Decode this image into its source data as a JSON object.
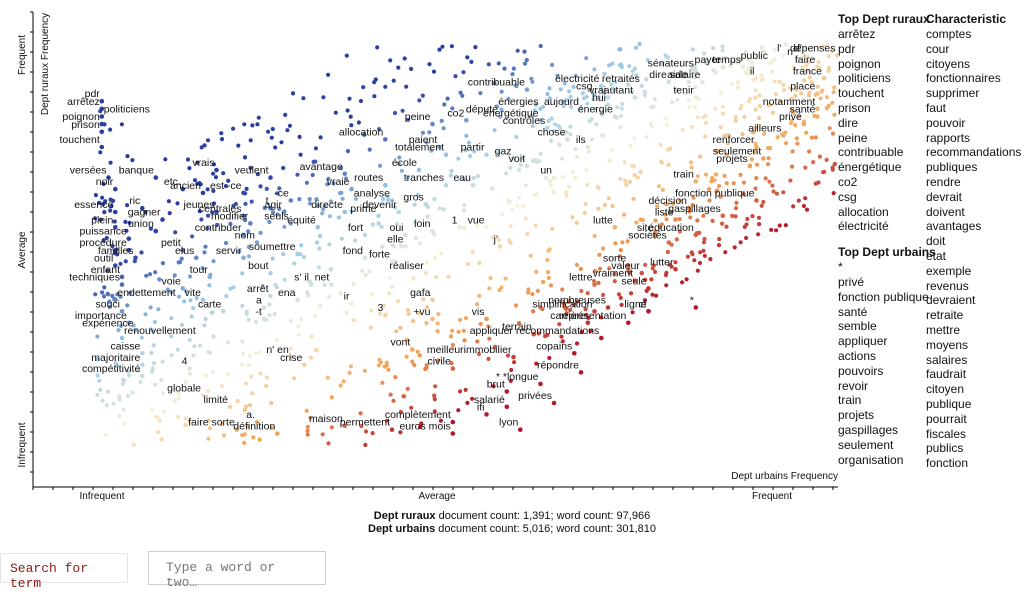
{
  "chart_data": {
    "type": "scatter",
    "x_axis": {
      "label": "Dept urbains Frequency",
      "ticks": [
        "Infrequent",
        "Average",
        "Frequent"
      ]
    },
    "y_axis": {
      "label": "Dept ruraux Frequency",
      "ticks": [
        "Infrequent",
        "Average",
        "Frequent"
      ]
    },
    "color_scale": {
      "rural": "#2b3fa0",
      "mid_rural": "#9cc9e6",
      "neutral": "#f4f1d8",
      "mid_urban": "#f2a65a",
      "urban": "#b2182b"
    },
    "points": [
      {
        "label": "pdr",
        "x": 0.01,
        "y": 0.9
      },
      {
        "label": "arrêtez",
        "x": 0.01,
        "y": 0.88
      },
      {
        "label": "politiciens",
        "x": 0.01,
        "y": 0.86
      },
      {
        "label": "poignon",
        "x": 0.01,
        "y": 0.84
      },
      {
        "label": "prison",
        "x": 0.01,
        "y": 0.82
      },
      {
        "label": "touchent",
        "x": 0.01,
        "y": 0.78
      },
      {
        "label": "versées",
        "x": 0.02,
        "y": 0.7
      },
      {
        "label": "banque",
        "x": 0.09,
        "y": 0.7
      },
      {
        "label": "etc.",
        "x": 0.13,
        "y": 0.67
      },
      {
        "label": "noir",
        "x": 0.03,
        "y": 0.67
      },
      {
        "label": "ancien",
        "x": 0.16,
        "y": 0.66
      },
      {
        "label": "est -ce",
        "x": 0.22,
        "y": 0.66
      },
      {
        "label": "vrais",
        "x": 0.18,
        "y": 0.72
      },
      {
        "label": "veulent",
        "x": 0.26,
        "y": 0.7
      },
      {
        "label": "essence",
        "x": 0.03,
        "y": 0.61
      },
      {
        "label": "ric",
        "x": 0.07,
        "y": 0.62
      },
      {
        "label": "jeunes",
        "x": 0.18,
        "y": 0.61
      },
      {
        "label": "gagner",
        "x": 0.1,
        "y": 0.59
      },
      {
        "label": "centrales",
        "x": 0.22,
        "y": 0.6
      },
      {
        "label": "plein",
        "x": 0.03,
        "y": 0.57
      },
      {
        "label": "union",
        "x": 0.09,
        "y": 0.56
      },
      {
        "label": "modifier",
        "x": 0.23,
        "y": 0.58
      },
      {
        "label": "-ce",
        "x": 0.29,
        "y": 0.64
      },
      {
        "label": "agir",
        "x": 0.28,
        "y": 0.61
      },
      {
        "label": "t",
        "x": 0.26,
        "y": 0.62
      },
      {
        "label": "seuls",
        "x": 0.29,
        "y": 0.58
      },
      {
        "label": "puissance",
        "x": 0.05,
        "y": 0.54
      },
      {
        "label": "contribuer",
        "x": 0.22,
        "y": 0.55
      },
      {
        "label": "nom",
        "x": 0.24,
        "y": 0.53
      },
      {
        "label": "équité",
        "x": 0.33,
        "y": 0.57
      },
      {
        "label": "procédure",
        "x": 0.05,
        "y": 0.51
      },
      {
        "label": "familles",
        "x": 0.06,
        "y": 0.49
      },
      {
        "label": "petit",
        "x": 0.13,
        "y": 0.51
      },
      {
        "label": "elus",
        "x": 0.15,
        "y": 0.49
      },
      {
        "label": "servir",
        "x": 0.22,
        "y": 0.49
      },
      {
        "label": "soumettre",
        "x": 0.3,
        "y": 0.5
      },
      {
        "label": "outil",
        "x": 0.03,
        "y": 0.47
      },
      {
        "label": "tour",
        "x": 0.17,
        "y": 0.44
      },
      {
        "label": "bout",
        "x": 0.26,
        "y": 0.45
      },
      {
        "label": "enfant",
        "x": 0.04,
        "y": 0.44
      },
      {
        "label": "techniques",
        "x": 0.04,
        "y": 0.42
      },
      {
        "label": "voie",
        "x": 0.13,
        "y": 0.41
      },
      {
        "label": "s' il",
        "x": 0.32,
        "y": 0.42
      },
      {
        "label": "vite",
        "x": 0.16,
        "y": 0.38
      },
      {
        "label": "arrêt",
        "x": 0.26,
        "y": 0.39
      },
      {
        "label": "ena",
        "x": 0.3,
        "y": 0.38
      },
      {
        "label": "endettement",
        "x": 0.03,
        "y": 0.38
      },
      {
        "label": "souci",
        "x": 0.04,
        "y": 0.35
      },
      {
        "label": "carte",
        "x": 0.19,
        "y": 0.35
      },
      {
        "label": "a",
        "x": 0.25,
        "y": 0.36
      },
      {
        "label": "-t",
        "x": 0.25,
        "y": 0.33
      },
      {
        "label": "importance",
        "x": 0.05,
        "y": 0.32
      },
      {
        "label": "expérience",
        "x": 0.06,
        "y": 0.3
      },
      {
        "label": "renouvellement",
        "x": 0.04,
        "y": 0.28
      },
      {
        "label": "caisse",
        "x": 0.07,
        "y": 0.24
      },
      {
        "label": "majoritaire",
        "x": 0.07,
        "y": 0.21
      },
      {
        "label": "4",
        "x": 0.14,
        "y": 0.2
      },
      {
        "label": "compétitivité",
        "x": 0.07,
        "y": 0.18
      },
      {
        "label": "globale",
        "x": 0.16,
        "y": 0.13
      },
      {
        "label": "limité",
        "x": 0.2,
        "y": 0.1
      },
      {
        "label": "a.",
        "x": 0.24,
        "y": 0.06
      },
      {
        "label": "faire sorte",
        "x": 0.21,
        "y": 0.04
      },
      {
        "label": "définition",
        "x": 0.27,
        "y": 0.03
      },
      {
        "label": "n' en",
        "x": 0.29,
        "y": 0.23
      },
      {
        "label": "crise",
        "x": 0.31,
        "y": 0.21
      },
      {
        "label": "maison",
        "x": 0.37,
        "y": 0.05
      },
      {
        "label": "permettent",
        "x": 0.44,
        "y": 0.04
      },
      {
        "label": "complètement",
        "x": 0.53,
        "y": 0.06
      },
      {
        "label": "euros mois",
        "x": 0.53,
        "y": 0.03
      },
      {
        "label": "ifi",
        "x": 0.58,
        "y": 0.08
      },
      {
        "label": "salarié",
        "x": 0.61,
        "y": 0.1
      },
      {
        "label": "lyon",
        "x": 0.63,
        "y": 0.04
      },
      {
        "label": "privées",
        "x": 0.68,
        "y": 0.11
      },
      {
        "label": "brut",
        "x": 0.61,
        "y": 0.14
      },
      {
        "label": "* *longue",
        "x": 0.66,
        "y": 0.16
      },
      {
        "label": "civile",
        "x": 0.53,
        "y": 0.2
      },
      {
        "label": "meilleurimmobilier",
        "x": 0.62,
        "y": 0.23
      },
      {
        "label": "répondre",
        "x": 0.72,
        "y": 0.19
      },
      {
        "label": "vont",
        "x": 0.47,
        "y": 0.25
      },
      {
        "label": "terrain",
        "x": 0.65,
        "y": 0.29
      },
      {
        "label": "copains",
        "x": 0.71,
        "y": 0.24
      },
      {
        "label": "appliquer recommandations",
        "x": 0.75,
        "y": 0.28
      },
      {
        "label": "carrière",
        "x": 0.73,
        "y": 0.32
      },
      {
        "label": "représentation",
        "x": 0.79,
        "y": 0.32
      },
      {
        "label": "cf",
        "x": 0.82,
        "y": 0.35
      },
      {
        "label": "*",
        "x": 0.89,
        "y": 0.36
      },
      {
        "label": "vis",
        "x": 0.58,
        "y": 0.33
      },
      {
        "label": "+vu",
        "x": 0.5,
        "y": 0.33
      },
      {
        "label": "3",
        "x": 0.43,
        "y": 0.34
      },
      {
        "label": "ir",
        "x": 0.38,
        "y": 0.37
      },
      {
        "label": "gafa",
        "x": 0.5,
        "y": 0.38
      },
      {
        "label": "net",
        "x": 0.35,
        "y": 0.42
      },
      {
        "label": "réaliser",
        "x": 0.49,
        "y": 0.45
      },
      {
        "label": "fond",
        "x": 0.4,
        "y": 0.49
      },
      {
        "label": "forte",
        "x": 0.44,
        "y": 0.48
      },
      {
        "label": "elle",
        "x": 0.46,
        "y": 0.52
      },
      {
        "label": "fort",
        "x": 0.4,
        "y": 0.55
      },
      {
        "label": "oui",
        "x": 0.46,
        "y": 0.55
      },
      {
        "label": "loin",
        "x": 0.5,
        "y": 0.56
      },
      {
        "label": "1",
        "x": 0.54,
        "y": 0.57
      },
      {
        "label": "vue",
        "x": 0.58,
        "y": 0.57
      },
      {
        "label": "j'",
        "x": 0.6,
        "y": 0.52
      },
      {
        "label": "directe",
        "x": 0.37,
        "y": 0.61
      },
      {
        "label": "prime",
        "x": 0.42,
        "y": 0.6
      },
      {
        "label": "devenir",
        "x": 0.45,
        "y": 0.61
      },
      {
        "label": "gros",
        "x": 0.49,
        "y": 0.63
      },
      {
        "label": "vraie",
        "x": 0.38,
        "y": 0.67
      },
      {
        "label": "routes",
        "x": 0.43,
        "y": 0.68
      },
      {
        "label": "analyse",
        "x": 0.44,
        "y": 0.64
      },
      {
        "label": "avantage",
        "x": 0.37,
        "y": 0.71
      },
      {
        "label": "école",
        "x": 0.48,
        "y": 0.72
      },
      {
        "label": "tranches",
        "x": 0.52,
        "y": 0.68
      },
      {
        "label": "eau",
        "x": 0.56,
        "y": 0.68
      },
      {
        "label": "allocation",
        "x": 0.43,
        "y": 0.8
      },
      {
        "label": "paient",
        "x": 0.51,
        "y": 0.78
      },
      {
        "label": "totalement",
        "x": 0.52,
        "y": 0.76
      },
      {
        "label": "partir",
        "x": 0.58,
        "y": 0.76
      },
      {
        "label": "gaz",
        "x": 0.62,
        "y": 0.75
      },
      {
        "label": "voit",
        "x": 0.64,
        "y": 0.73
      },
      {
        "label": "un",
        "x": 0.68,
        "y": 0.7
      },
      {
        "label": "peine",
        "x": 0.5,
        "y": 0.84
      },
      {
        "label": "co2",
        "x": 0.55,
        "y": 0.85
      },
      {
        "label": "député",
        "x": 0.6,
        "y": 0.86
      },
      {
        "label": "contribuable",
        "x": 0.64,
        "y": 0.93
      },
      {
        "label": "énergies",
        "x": 0.66,
        "y": 0.88
      },
      {
        "label": "énergétique",
        "x": 0.66,
        "y": 0.85
      },
      {
        "label": "contrôles",
        "x": 0.67,
        "y": 0.83
      },
      {
        "label": "aujourd",
        "x": 0.72,
        "y": 0.88
      },
      {
        "label": "électricité",
        "x": 0.75,
        "y": 0.94
      },
      {
        "label": "csg",
        "x": 0.74,
        "y": 0.92
      },
      {
        "label": "vrai",
        "x": 0.76,
        "y": 0.91
      },
      {
        "label": "hui",
        "x": 0.76,
        "y": 0.89
      },
      {
        "label": "énergie",
        "x": 0.77,
        "y": 0.86
      },
      {
        "label": "chose",
        "x": 0.7,
        "y": 0.8
      },
      {
        "label": "ils",
        "x": 0.73,
        "y": 0.78
      },
      {
        "label": "retraités",
        "x": 0.81,
        "y": 0.94
      },
      {
        "label": "autant",
        "x": 0.8,
        "y": 0.91
      },
      {
        "label": "dire",
        "x": 0.85,
        "y": 0.95
      },
      {
        "label": "sénateurs",
        "x": 0.89,
        "y": 0.98
      },
      {
        "label": "aide",
        "x": 0.88,
        "y": 0.95
      },
      {
        "label": "salaire",
        "x": 0.9,
        "y": 0.95
      },
      {
        "label": "tenir",
        "x": 0.89,
        "y": 0.91
      },
      {
        "label": "payer",
        "x": 0.93,
        "y": 0.99
      },
      {
        "label": "temps",
        "x": 0.96,
        "y": 0.99
      },
      {
        "label": "il",
        "x": 0.98,
        "y": 0.96
      },
      {
        "label": "public",
        "x": 1.0,
        "y": 1.0
      },
      {
        "label": "l'",
        "x": 1.02,
        "y": 1.02
      },
      {
        "label": "n'",
        "x": 1.04,
        "y": 1.01
      },
      {
        "label": "d'",
        "x": 1.05,
        "y": 1.02
      },
      {
        "label": "dépenses",
        "x": 1.1,
        "y": 1.02
      },
      {
        "label": "faire",
        "x": 1.07,
        "y": 0.99
      },
      {
        "label": "france",
        "x": 1.08,
        "y": 0.96
      },
      {
        "label": "place",
        "x": 1.07,
        "y": 0.92
      },
      {
        "label": "notamment",
        "x": 1.07,
        "y": 0.88
      },
      {
        "label": "santé",
        "x": 1.07,
        "y": 0.86
      },
      {
        "label": "privé",
        "x": 1.05,
        "y": 0.84
      },
      {
        "label": "ailleurs",
        "x": 1.02,
        "y": 0.81
      },
      {
        "label": "renforcer",
        "x": 0.98,
        "y": 0.78
      },
      {
        "label": "seulement",
        "x": 0.99,
        "y": 0.75
      },
      {
        "label": "projets",
        "x": 0.97,
        "y": 0.73
      },
      {
        "label": "train",
        "x": 0.89,
        "y": 0.69
      },
      {
        "label": "fonction publique",
        "x": 0.98,
        "y": 0.64
      },
      {
        "label": "décision",
        "x": 0.88,
        "y": 0.62
      },
      {
        "label": "gaspillages",
        "x": 0.93,
        "y": 0.6
      },
      {
        "label": "liste",
        "x": 0.86,
        "y": 0.59
      },
      {
        "label": "éducation",
        "x": 0.89,
        "y": 0.55
      },
      {
        "label": "site",
        "x": 0.83,
        "y": 0.55
      },
      {
        "label": "sociétés",
        "x": 0.85,
        "y": 0.53
      },
      {
        "label": "lutte",
        "x": 0.77,
        "y": 0.57
      },
      {
        "label": "lutter",
        "x": 0.86,
        "y": 0.46
      },
      {
        "label": "sorte",
        "x": 0.79,
        "y": 0.47
      },
      {
        "label": "valeur",
        "x": 0.81,
        "y": 0.45
      },
      {
        "label": "vraiment",
        "x": 0.8,
        "y": 0.43
      },
      {
        "label": "lettre",
        "x": 0.74,
        "y": 0.42
      },
      {
        "label": "seule",
        "x": 0.82,
        "y": 0.41
      },
      {
        "label": "nombreuses",
        "x": 0.76,
        "y": 0.36
      },
      {
        "label": "simplification",
        "x": 0.74,
        "y": 0.35
      },
      {
        "label": "ligne",
        "x": 0.82,
        "y": 0.35
      }
    ],
    "background_points_note": ""
  },
  "side": {
    "rural_heading": "Top Dept ruraux",
    "rural_terms": [
      "arrêtez",
      "pdr",
      "poignon",
      "politiciens",
      "touchent",
      "prison",
      "dire",
      "peine",
      "contribuable",
      "énergétique",
      "co2",
      "csg",
      "allocation",
      "électricité"
    ],
    "urban_heading": "Top Dept urbains",
    "urban_terms": [
      "*",
      "privé",
      "fonction publique",
      "santé",
      "semble",
      "appliquer",
      "actions",
      "pouvoirs",
      "revoir",
      "train",
      "projets",
      "gaspillages",
      "seulement",
      "organisation"
    ],
    "char_heading": "Characteristic",
    "char_terms": [
      "comptes",
      "cour",
      "citoyens",
      "fonctionnaires",
      "supprimer",
      "faut",
      "pouvoir",
      "rapports",
      "recommandations",
      "publiques",
      "rendre",
      "devrait",
      "doivent",
      "avantages",
      "doit",
      "etat",
      "exemple",
      "revenus",
      "devraient",
      "retraite",
      "mettre",
      "moyens",
      "salaires",
      "faudrait",
      "citoyen",
      "publique",
      "pourrait",
      "fiscales",
      "publics",
      "fonction"
    ]
  },
  "footer": {
    "rural_name": "Dept ruraux",
    "rural_stats": " document count: 1,391; word count: 97,966",
    "urban_name": "Dept urbains",
    "urban_stats": " document count: 5,016; word count: 301,810"
  },
  "search": {
    "button_label": "Search for term",
    "placeholder": "Type a word or two…"
  }
}
